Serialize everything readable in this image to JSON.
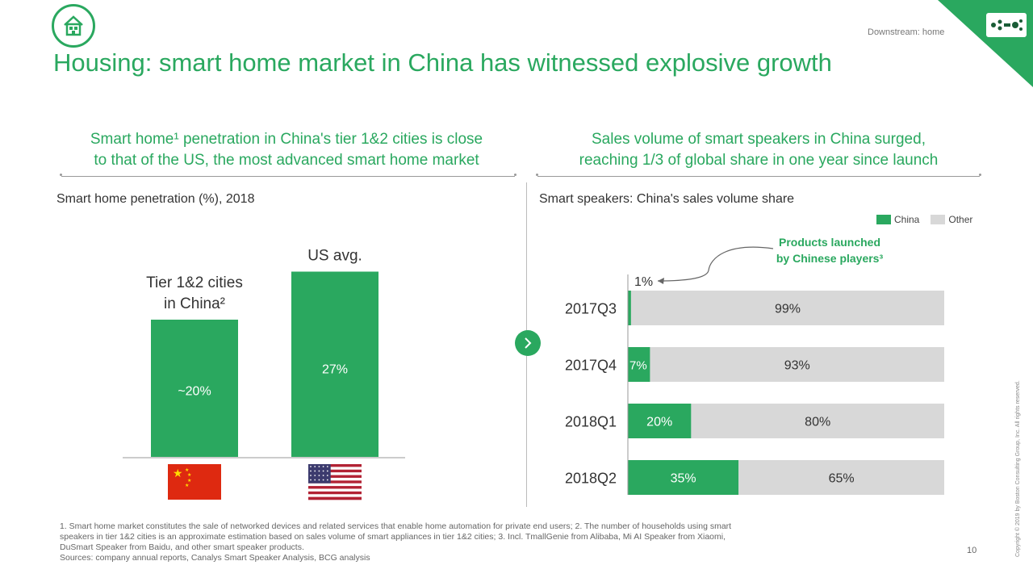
{
  "header": {
    "title": "Housing: smart home market in China has witnessed explosive growth",
    "section_tag": "Downstream: home",
    "logo_icon": "house-icon",
    "brand_icon": "bcg-brand-icon",
    "accent_color": "#2aa85f"
  },
  "left_panel": {
    "subtitle_line1": "Smart home¹ penetration in China's tier 1&2 cities is close",
    "subtitle_line2": "to that of the US, the most advanced smart home market",
    "chart_title": "Smart home penetration (%), 2018"
  },
  "right_panel": {
    "subtitle_line1": "Sales volume of smart speakers in China surged,",
    "subtitle_line2": "reaching 1/3 of global share in one year since launch",
    "chart_title": "Smart speakers: China's sales volume share",
    "callout_line1": "Products launched",
    "callout_line2": "by Chinese players³"
  },
  "chart_data": [
    {
      "type": "bar",
      "title": "Smart home penetration (%), 2018",
      "categories": [
        "Tier 1&2 cities in China²",
        "US avg."
      ],
      "category_lines": [
        [
          "Tier 1&2 cities",
          "in China²"
        ],
        [
          "US avg."
        ]
      ],
      "values": [
        20,
        27
      ],
      "value_labels": [
        "~20%",
        "27%"
      ],
      "flags": [
        "china-flag-icon",
        "us-flag-icon"
      ],
      "bar_color": "#2aa85f"
    },
    {
      "type": "bar",
      "orientation": "horizontal",
      "stacked": true,
      "title": "Smart speakers: China's sales volume share",
      "categories": [
        "2017Q3",
        "2017Q4",
        "2018Q1",
        "2018Q2"
      ],
      "series": [
        {
          "name": "China",
          "values": [
            1,
            7,
            20,
            35
          ],
          "labels": [
            "1%",
            "7%",
            "20%",
            "35%"
          ],
          "color": "#2aa85f"
        },
        {
          "name": "Other",
          "values": [
            99,
            93,
            80,
            65
          ],
          "labels": [
            "99%",
            "93%",
            "80%",
            "65%"
          ],
          "color": "#d8d8d8"
        }
      ],
      "xlim": [
        0,
        100
      ],
      "legend": "top-right"
    }
  ],
  "footer": {
    "footnote_line1": "1. Smart home market constitutes the sale of networked devices and related services that enable home automation for private end users; 2. The number of households using smart",
    "footnote_line2": "speakers in tier 1&2 cities is an approximate estimation based on sales volume of smart appliances in tier 1&2 cities; 3. Incl. TmallGenie from Alibaba, Mi AI Speaker from Xiaomi,",
    "footnote_line3": "DuSmart Speaker from Baidu, and other smart speaker products.",
    "sources": "Sources: company annual reports, Canalys Smart Speaker Analysis, BCG analysis",
    "page_number": "10",
    "copyright": "Copyright © 2019 by Boston Consulting Group, Inc. All rights reserved."
  }
}
